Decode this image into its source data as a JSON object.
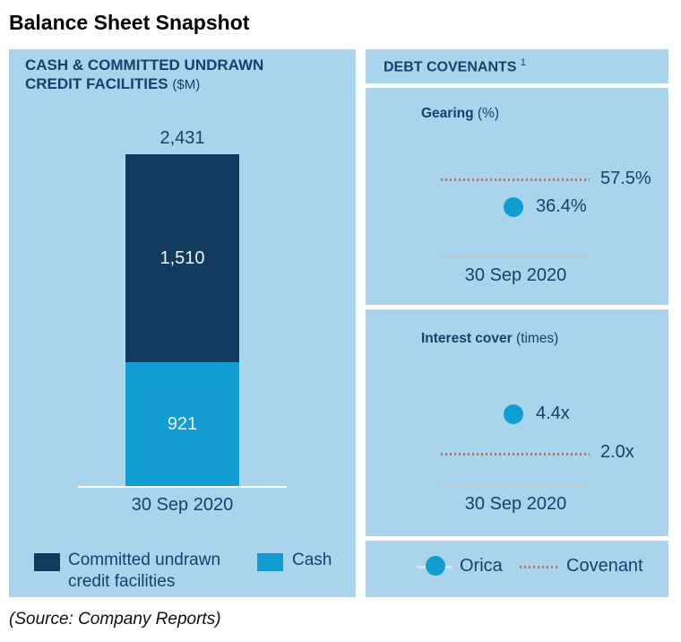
{
  "page": {
    "title": "Balance Sheet Snapshot",
    "source_note": "(Source: Company Reports)"
  },
  "colors": {
    "panel_bg": "#a9d4ec",
    "navy_text": "#17406d",
    "bar_navy": "#123a5f",
    "cyan": "#119dd2",
    "covenant_red": "#cd6a55",
    "baseline_white": "#ffffff"
  },
  "left_panel": {
    "heading_main": "CASH & COMMITTED UNDRAWN CREDIT FACILITIES",
    "heading_unit": "($M)",
    "total_label": "2,431",
    "committed_label": "1,510",
    "cash_label": "921",
    "x_axis_label": "30 Sep 2020",
    "legend": {
      "committed": "Committed undrawn credit facilities",
      "cash": "Cash"
    }
  },
  "right_panel": {
    "heading": "DEBT COVENANTS",
    "heading_footnote": "1",
    "gearing": {
      "title": "Gearing",
      "unit": "(%)",
      "covenant_value": "57.5%",
      "orica_value": "36.4%",
      "x_axis_label": "30 Sep 2020"
    },
    "interest_cover": {
      "title": "Interest cover",
      "unit": "(times)",
      "orica_value": "4.4x",
      "covenant_value": "2.0x",
      "x_axis_label": "30 Sep 2020"
    },
    "legend": {
      "orica_label": "Orica",
      "covenant_label": "Covenant"
    }
  },
  "chart_data": [
    {
      "type": "bar",
      "subtype": "stacked",
      "title": "Cash & Committed Undrawn Credit Facilities ($M)",
      "categories": [
        "30 Sep 2020"
      ],
      "series": [
        {
          "name": "Cash",
          "values": [
            921
          ],
          "color": "#119dd2"
        },
        {
          "name": "Committed undrawn credit facilities",
          "values": [
            1510
          ],
          "color": "#123a5f"
        }
      ],
      "totals": [
        2431
      ],
      "ylabel": "$M",
      "legend_position": "bottom"
    },
    {
      "type": "scatter",
      "title": "Gearing (%)",
      "categories": [
        "30 Sep 2020"
      ],
      "series": [
        {
          "name": "Orica",
          "values": [
            36.4
          ],
          "marker": "circle",
          "color": "#119dd2"
        },
        {
          "name": "Covenant",
          "values": [
            57.5
          ],
          "style": "dotted-reference-line",
          "color": "#cd6a55"
        }
      ]
    },
    {
      "type": "scatter",
      "title": "Interest cover (times)",
      "categories": [
        "30 Sep 2020"
      ],
      "series": [
        {
          "name": "Orica",
          "values": [
            4.4
          ],
          "marker": "circle",
          "color": "#119dd2"
        },
        {
          "name": "Covenant",
          "values": [
            2.0
          ],
          "style": "dotted-reference-line",
          "color": "#cd6a55"
        }
      ]
    }
  ]
}
